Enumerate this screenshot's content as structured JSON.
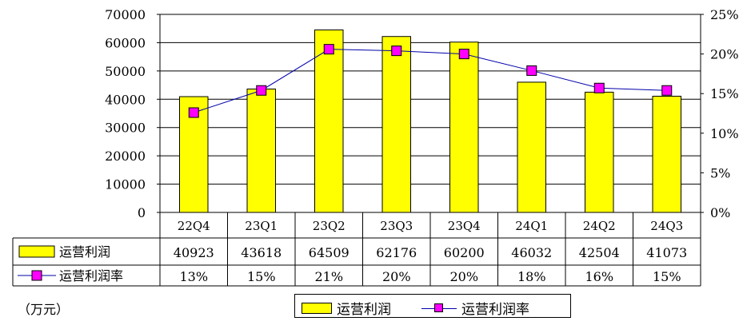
{
  "chart_data": {
    "type": "bar",
    "categories": [
      "22Q4",
      "23Q1",
      "23Q2",
      "23Q3",
      "23Q4",
      "24Q1",
      "24Q2",
      "24Q3"
    ],
    "series": [
      {
        "name": "运营利润",
        "type": "bar",
        "axis": "left",
        "color": "#ffff00",
        "values": [
          40923,
          43618,
          64509,
          62176,
          60200,
          46032,
          42504,
          41073
        ]
      },
      {
        "name": "运营利润率",
        "type": "line",
        "axis": "right",
        "color": "#0000aa",
        "marker_color": "#ff00ff",
        "values": [
          12.6,
          15.4,
          20.6,
          20.4,
          20.0,
          17.9,
          15.7,
          15.4
        ]
      }
    ],
    "table_rows": [
      {
        "label": "运营利润",
        "cells": [
          "40923",
          "43618",
          "64509",
          "62176",
          "60200",
          "46032",
          "42504",
          "41073"
        ]
      },
      {
        "label": "运营利润率",
        "cells": [
          "13%",
          "15%",
          "21%",
          "20%",
          "20%",
          "18%",
          "16%",
          "15%"
        ]
      }
    ],
    "ylim_left": [
      0,
      70000
    ],
    "yticks_left": [
      "0",
      "10000",
      "20000",
      "30000",
      "40000",
      "50000",
      "60000",
      "70000"
    ],
    "ylim_right": [
      0,
      25
    ],
    "yticks_right": [
      "0%",
      "5%",
      "10%",
      "15%",
      "20%",
      "25%"
    ],
    "grid": true,
    "legend_position": "bottom",
    "unit_label": "（万元）"
  }
}
